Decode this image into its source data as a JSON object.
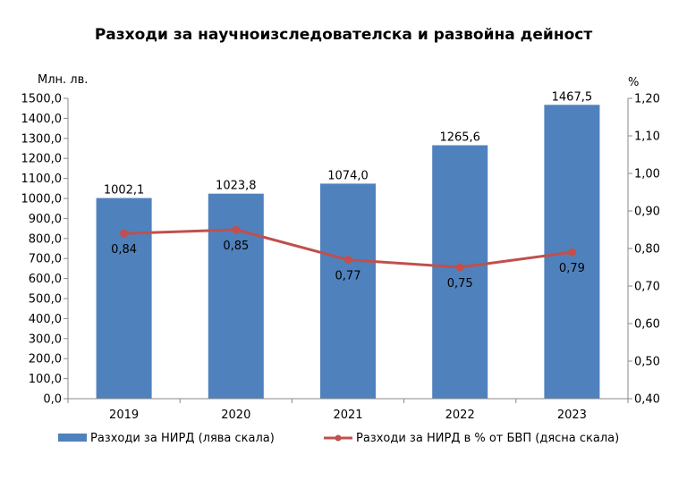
{
  "chart_data": {
    "type": "bar",
    "title": "Разходи за научноизследователска и развойна дейност",
    "categories": [
      "2019",
      "2020",
      "2021",
      "2022",
      "2023"
    ],
    "series": [
      {
        "name": "Разходи за НИРД (лява скала)",
        "type": "bar",
        "axis": "left",
        "color": "#4f81bd",
        "values": [
          1002.1,
          1023.8,
          1074.0,
          1265.6,
          1467.5
        ],
        "labels": [
          "1002,1",
          "1023,8",
          "1074,0",
          "1265,6",
          "1467,5"
        ]
      },
      {
        "name": "Разходи за НИРД в % от БВП (дясна скала)",
        "type": "line",
        "axis": "right",
        "color": "#c0504d",
        "values": [
          0.84,
          0.85,
          0.77,
          0.75,
          0.79
        ],
        "labels": [
          "0,84",
          "0,85",
          "0,77",
          "0,75",
          "0,79"
        ]
      }
    ],
    "y_left": {
      "unit_label": "Млн. лв.",
      "ylim": [
        0,
        1500
      ],
      "ticks": [
        "0,0",
        "100,0",
        "200,0",
        "300,0",
        "400,0",
        "500,0",
        "600,0",
        "700,0",
        "800,0",
        "900,0",
        "1000,0",
        "1100,0",
        "1200,0",
        "1300,0",
        "1400,0",
        "1500,0"
      ]
    },
    "y_right": {
      "unit_label": "%",
      "ylim": [
        0.4,
        1.2
      ],
      "ticks": [
        "0,40",
        "0,50",
        "0,60",
        "0,70",
        "0,80",
        "0,90",
        "1,00",
        "1,10",
        "1,20"
      ]
    },
    "grid": false,
    "legend_position": "bottom"
  }
}
